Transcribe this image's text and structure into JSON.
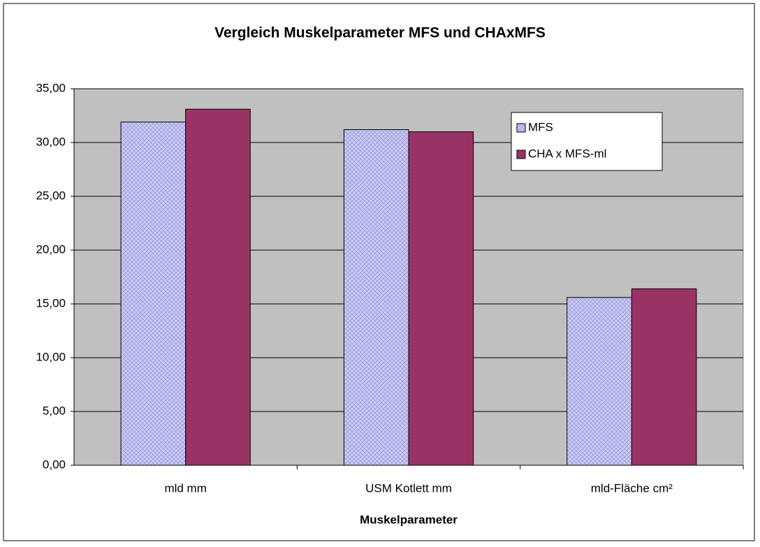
{
  "chart_data": {
    "type": "bar",
    "title": "Vergleich Muskelparameter MFS und CHAxMFS",
    "x_label": "Muskelparameter",
    "categories": [
      "mld mm",
      "USM Kotlett mm",
      "mld-Fläche cm²"
    ],
    "series": [
      {
        "name": "MFS",
        "color": "#ccccff",
        "values": [
          31.9,
          31.2,
          15.6
        ]
      },
      {
        "name": "CHA x MFS-ml",
        "color": "#993366",
        "values": [
          33.1,
          31.0,
          16.4
        ]
      }
    ],
    "ylim": [
      0,
      35
    ],
    "yticks": [
      {
        "value": 0,
        "label": "0,00"
      },
      {
        "value": 5,
        "label": "5,00"
      },
      {
        "value": 10,
        "label": "10,00"
      },
      {
        "value": 15,
        "label": "15,00"
      },
      {
        "value": 20,
        "label": "20,00"
      },
      {
        "value": 25,
        "label": "25,00"
      },
      {
        "value": 30,
        "label": "30,00"
      },
      {
        "value": 35,
        "label": "35,00"
      }
    ],
    "grid": true,
    "legend": "upper right"
  }
}
